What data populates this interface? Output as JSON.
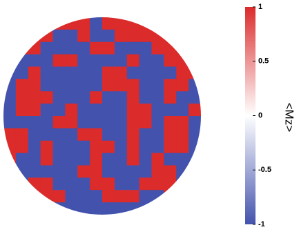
{
  "chart_data": {
    "type": "heatmap",
    "colorbar_label": "<Mz>",
    "zlim": [
      -1,
      1
    ],
    "zticks": [
      1,
      0.5,
      0,
      -0.5,
      -1
    ],
    "colors": {
      "low": "#4353ad",
      "mid": "#ffffff",
      "high": "#db2b2b"
    },
    "z": [
      [
        -1,
        -1,
        -1,
        1,
        1,
        1,
        1,
        -1,
        1,
        1,
        1,
        1,
        1,
        -1,
        -1,
        -1
      ],
      [
        -1,
        -1,
        1,
        1,
        -1,
        -1,
        1,
        -1,
        -1,
        1,
        1,
        1,
        1,
        1,
        -1,
        -1
      ],
      [
        -1,
        1,
        1,
        -1,
        -1,
        -1,
        -1,
        1,
        1,
        -1,
        -1,
        -1,
        1,
        1,
        1,
        -1
      ],
      [
        1,
        -1,
        -1,
        -1,
        1,
        1,
        -1,
        -1,
        -1,
        -1,
        1,
        -1,
        -1,
        1,
        1,
        1
      ],
      [
        -1,
        -1,
        1,
        -1,
        -1,
        -1,
        -1,
        -1,
        1,
        1,
        -1,
        -1,
        -1,
        -1,
        1,
        1
      ],
      [
        -1,
        1,
        1,
        -1,
        -1,
        -1,
        -1,
        -1,
        1,
        1,
        1,
        -1,
        -1,
        1,
        1,
        -1
      ],
      [
        -1,
        1,
        1,
        1,
        -1,
        -1,
        -1,
        1,
        -1,
        -1,
        1,
        -1,
        -1,
        1,
        -1,
        -1
      ],
      [
        -1,
        1,
        1,
        -1,
        -1,
        1,
        -1,
        -1,
        -1,
        -1,
        1,
        1,
        -1,
        -1,
        -1,
        1
      ],
      [
        -1,
        -1,
        -1,
        -1,
        1,
        1,
        -1,
        -1,
        -1,
        -1,
        1,
        1,
        -1,
        1,
        1,
        -1
      ],
      [
        1,
        1,
        -1,
        -1,
        -1,
        -1,
        1,
        1,
        -1,
        -1,
        1,
        -1,
        -1,
        1,
        1,
        -1
      ],
      [
        1,
        1,
        -1,
        1,
        -1,
        -1,
        -1,
        1,
        1,
        -1,
        1,
        -1,
        -1,
        1,
        1,
        -1
      ],
      [
        1,
        -1,
        -1,
        1,
        -1,
        -1,
        -1,
        1,
        -1,
        -1,
        1,
        -1,
        1,
        -1,
        -1,
        -1
      ],
      [
        -1,
        -1,
        -1,
        -1,
        -1,
        -1,
        1,
        1,
        -1,
        -1,
        -1,
        -1,
        1,
        1,
        -1,
        1
      ],
      [
        -1,
        -1,
        1,
        1,
        -1,
        -1,
        -1,
        1,
        1,
        -1,
        -1,
        1,
        1,
        1,
        -1,
        1
      ],
      [
        -1,
        1,
        1,
        1,
        1,
        -1,
        -1,
        -1,
        1,
        1,
        1,
        -1,
        -1,
        1,
        1,
        -1
      ],
      [
        -1,
        -1,
        -1,
        -1,
        -1,
        -1,
        -1,
        -1,
        -1,
        -1,
        -1,
        -1,
        -1,
        -1,
        -1,
        -1
      ]
    ]
  }
}
